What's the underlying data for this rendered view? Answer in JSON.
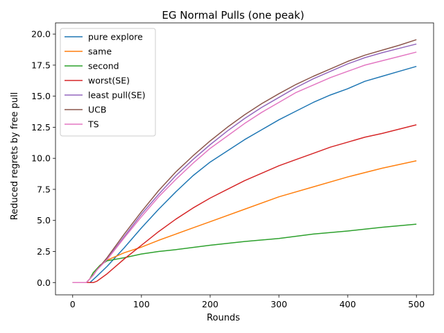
{
  "chart_data": {
    "type": "line",
    "title": "EG Normal Pulls (one peak)",
    "xlabel": "Rounds",
    "ylabel": "Reduced regrets by free pull",
    "xlim": [
      -25,
      525
    ],
    "ylim": [
      -0.99,
      20.9
    ],
    "xticks": [
      0,
      100,
      200,
      300,
      400,
      500
    ],
    "xtick_labels": [
      "0",
      "100",
      "200",
      "300",
      "400",
      "500"
    ],
    "yticks": [
      0,
      2.5,
      5,
      7.5,
      10,
      12.5,
      15,
      17.5,
      20
    ],
    "ytick_labels": [
      "0.0",
      "2.5",
      "5.0",
      "7.5",
      "10.0",
      "12.5",
      "15.0",
      "17.5",
      "20.0"
    ],
    "grid": false,
    "legend_position": "top-left",
    "series": [
      {
        "name": "pure explore",
        "color": "#1f77b4",
        "points": [
          [
            0,
            0
          ],
          [
            25,
            0
          ],
          [
            35,
            0.5
          ],
          [
            50,
            1.3
          ],
          [
            60,
            1.9
          ],
          [
            75,
            2.8
          ],
          [
            100,
            4.4
          ],
          [
            125,
            5.9
          ],
          [
            150,
            7.3
          ],
          [
            175,
            8.6
          ],
          [
            200,
            9.7
          ],
          [
            225,
            10.6
          ],
          [
            250,
            11.5
          ],
          [
            275,
            12.3
          ],
          [
            300,
            13.1
          ],
          [
            325,
            13.8
          ],
          [
            350,
            14.5
          ],
          [
            375,
            15.1
          ],
          [
            400,
            15.6
          ],
          [
            425,
            16.2
          ],
          [
            450,
            16.6
          ],
          [
            475,
            17.0
          ],
          [
            500,
            17.4
          ]
        ]
      },
      {
        "name": "same",
        "color": "#ff7f0e",
        "points": [
          [
            0,
            0
          ],
          [
            20,
            0
          ],
          [
            25,
            0.3
          ],
          [
            30,
            0.8
          ],
          [
            40,
            1.4
          ],
          [
            50,
            1.8
          ],
          [
            75,
            2.4
          ],
          [
            100,
            2.85
          ],
          [
            125,
            3.4
          ],
          [
            150,
            3.9
          ],
          [
            175,
            4.4
          ],
          [
            200,
            4.9
          ],
          [
            250,
            5.9
          ],
          [
            300,
            6.9
          ],
          [
            350,
            7.7
          ],
          [
            400,
            8.5
          ],
          [
            450,
            9.2
          ],
          [
            500,
            9.8
          ]
        ]
      },
      {
        "name": "second",
        "color": "#2ca02c",
        "points": [
          [
            0,
            0
          ],
          [
            20,
            0
          ],
          [
            25,
            0.3
          ],
          [
            30,
            0.8
          ],
          [
            40,
            1.4
          ],
          [
            50,
            1.75
          ],
          [
            75,
            2.0
          ],
          [
            100,
            2.3
          ],
          [
            125,
            2.5
          ],
          [
            150,
            2.65
          ],
          [
            200,
            3.0
          ],
          [
            250,
            3.3
          ],
          [
            300,
            3.55
          ],
          [
            350,
            3.9
          ],
          [
            400,
            4.15
          ],
          [
            450,
            4.45
          ],
          [
            500,
            4.7
          ]
        ]
      },
      {
        "name": "worst(SE)",
        "color": "#d62728",
        "points": [
          [
            0,
            0
          ],
          [
            30,
            0
          ],
          [
            35,
            0.1
          ],
          [
            50,
            0.7
          ],
          [
            75,
            1.9
          ],
          [
            100,
            3.0
          ],
          [
            125,
            4.1
          ],
          [
            150,
            5.1
          ],
          [
            175,
            6.0
          ],
          [
            200,
            6.8
          ],
          [
            225,
            7.5
          ],
          [
            250,
            8.2
          ],
          [
            275,
            8.8
          ],
          [
            300,
            9.4
          ],
          [
            325,
            9.9
          ],
          [
            350,
            10.4
          ],
          [
            375,
            10.9
          ],
          [
            400,
            11.3
          ],
          [
            425,
            11.7
          ],
          [
            450,
            12.0
          ],
          [
            475,
            12.35
          ],
          [
            500,
            12.7
          ]
        ]
      },
      {
        "name": "least pull(SE)",
        "color": "#9467bd",
        "points": [
          [
            0,
            0
          ],
          [
            20,
            0
          ],
          [
            25,
            0.3
          ],
          [
            30,
            0.6
          ],
          [
            35,
            1.0
          ],
          [
            50,
            1.9
          ],
          [
            75,
            3.7
          ],
          [
            100,
            5.5
          ],
          [
            125,
            7.1
          ],
          [
            150,
            8.6
          ],
          [
            175,
            9.9
          ],
          [
            200,
            11.1
          ],
          [
            225,
            12.2
          ],
          [
            250,
            13.2
          ],
          [
            275,
            14.1
          ],
          [
            300,
            14.9
          ],
          [
            325,
            15.7
          ],
          [
            350,
            16.4
          ],
          [
            375,
            17.0
          ],
          [
            400,
            17.6
          ],
          [
            425,
            18.1
          ],
          [
            450,
            18.5
          ],
          [
            475,
            18.85
          ],
          [
            500,
            19.2
          ]
        ]
      },
      {
        "name": "UCB",
        "color": "#8c564b",
        "points": [
          [
            0,
            0
          ],
          [
            20,
            0
          ],
          [
            25,
            0.3
          ],
          [
            30,
            0.6
          ],
          [
            35,
            1.0
          ],
          [
            50,
            2.0
          ],
          [
            75,
            3.9
          ],
          [
            100,
            5.7
          ],
          [
            125,
            7.4
          ],
          [
            150,
            8.9
          ],
          [
            175,
            10.2
          ],
          [
            200,
            11.4
          ],
          [
            225,
            12.5
          ],
          [
            250,
            13.5
          ],
          [
            275,
            14.4
          ],
          [
            300,
            15.2
          ],
          [
            325,
            15.95
          ],
          [
            350,
            16.6
          ],
          [
            375,
            17.2
          ],
          [
            400,
            17.8
          ],
          [
            425,
            18.3
          ],
          [
            450,
            18.7
          ],
          [
            475,
            19.1
          ],
          [
            500,
            19.55
          ]
        ]
      },
      {
        "name": "TS",
        "color": "#e377c2",
        "points": [
          [
            0,
            0
          ],
          [
            20,
            0
          ],
          [
            25,
            0.3
          ],
          [
            30,
            0.6
          ],
          [
            35,
            1.0
          ],
          [
            50,
            1.85
          ],
          [
            75,
            3.6
          ],
          [
            100,
            5.3
          ],
          [
            125,
            6.9
          ],
          [
            150,
            8.3
          ],
          [
            175,
            9.6
          ],
          [
            200,
            10.8
          ],
          [
            225,
            11.8
          ],
          [
            250,
            12.8
          ],
          [
            275,
            13.7
          ],
          [
            300,
            14.5
          ],
          [
            325,
            15.3
          ],
          [
            350,
            15.9
          ],
          [
            375,
            16.5
          ],
          [
            400,
            17.0
          ],
          [
            425,
            17.5
          ],
          [
            450,
            17.85
          ],
          [
            475,
            18.2
          ],
          [
            500,
            18.55
          ]
        ]
      }
    ]
  }
}
